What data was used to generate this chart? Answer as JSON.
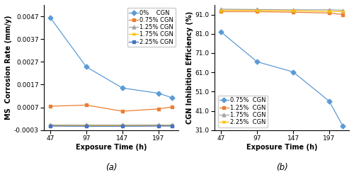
{
  "x": [
    47,
    97,
    147,
    197,
    216
  ],
  "subplot_a": {
    "series": [
      {
        "label": "0%    CGN",
        "color": "#5B9BD5",
        "marker": "D",
        "markersize": 3.5,
        "values": [
          0.00465,
          0.00248,
          0.00155,
          0.00132,
          0.00112
        ]
      },
      {
        "label": "0.75% CGN",
        "color": "#ED7D31",
        "marker": "s",
        "markersize": 3.5,
        "values": [
          0.00075,
          0.0008,
          0.00053,
          0.00063,
          0.00072
        ]
      },
      {
        "label": "1.25% CGN",
        "color": "#A5A5A5",
        "marker": "^",
        "markersize": 3.5,
        "values": [
          -5e-05,
          -5e-05,
          -5e-05,
          -5e-05,
          -5e-05
        ]
      },
      {
        "label": "1.75% CGN",
        "color": "#FFC000",
        "marker": "x",
        "markersize": 3.5,
        "values": [
          -8e-05,
          -8e-05,
          -8e-05,
          -8e-05,
          -8e-05
        ]
      },
      {
        "label": "2.25% CGN",
        "color": "#4472C4",
        "marker": "s",
        "markersize": 3.5,
        "values": [
          -0.00012,
          -0.00013,
          -0.00013,
          -0.00012,
          -0.00012
        ]
      }
    ],
    "ylabel": "MS  Corrosion Rate (mm/y)",
    "xlabel": "Exposure Time (h)",
    "ylim": [
      -0.0003,
      0.0052
    ],
    "yticks": [
      -0.0003,
      0.0007,
      0.0017,
      0.0027,
      0.0037,
      0.0047
    ],
    "xticks": [
      47,
      97,
      147,
      197
    ],
    "caption": "(a)"
  },
  "subplot_b": {
    "series": [
      {
        "label": "0.75%  CGN",
        "color": "#5B9BD5",
        "marker": "D",
        "markersize": 3.5,
        "values": [
          82.0,
          66.5,
          61.2,
          46.0,
          33.0
        ]
      },
      {
        "label": "1.25%  CGN",
        "color": "#ED7D31",
        "marker": "s",
        "markersize": 3.5,
        "values": [
          92.5,
          92.5,
          92.2,
          91.8,
          91.0
        ]
      },
      {
        "label": "1.75%  CGN",
        "color": "#A5A5A5",
        "marker": "^",
        "markersize": 3.5,
        "values": [
          93.8,
          93.6,
          93.5,
          93.5,
          93.2
        ]
      },
      {
        "label": "2.25%  CGN",
        "color": "#FFC000",
        "marker": "x",
        "markersize": 3.5,
        "values": [
          93.2,
          93.2,
          92.9,
          92.7,
          92.5
        ]
      }
    ],
    "ylabel": "CGN Inhibition Efficiency (%)",
    "xlabel": "Exposure Time (h)",
    "ylim": [
      31.0,
      96.0
    ],
    "yticks": [
      31.0,
      41.0,
      51.0,
      61.0,
      71.0,
      81.0,
      91.0
    ],
    "xticks": [
      47,
      97,
      147,
      197
    ],
    "caption": "(b)"
  },
  "background_color": "#ffffff",
  "fontsize_label": 7,
  "fontsize_tick": 6.5,
  "fontsize_legend": 6,
  "fontsize_caption": 8.5
}
